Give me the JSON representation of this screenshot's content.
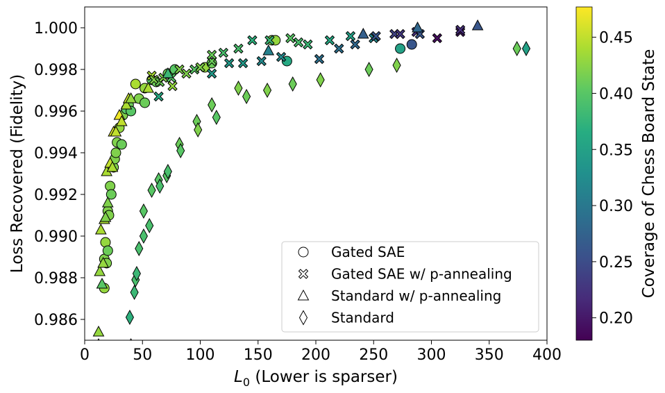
{
  "chart_data": {
    "type": "scatter",
    "xlabel_main": "L",
    "xlabel_sub": "0",
    "xlabel_rest": " (Lower is sparser)",
    "ylabel": "Loss Recovered (Fidelity)",
    "colorbar_label": "Coverage of Chess Board State",
    "xlim": [
      0,
      400
    ],
    "ylim": [
      0.985,
      1.001
    ],
    "x_ticks": [
      "0",
      "50",
      "100",
      "150",
      "200",
      "250",
      "300",
      "350",
      "400"
    ],
    "x_tick_values": [
      0,
      50,
      100,
      150,
      200,
      250,
      300,
      350,
      400
    ],
    "y_ticks": [
      "0.986",
      "0.988",
      "0.990",
      "0.992",
      "0.994",
      "0.996",
      "0.998",
      "1.000"
    ],
    "y_tick_values": [
      0.986,
      0.988,
      0.99,
      0.992,
      0.994,
      0.996,
      0.998,
      1.0
    ],
    "colorbar": {
      "colormap": "viridis",
      "range": [
        0.18,
        0.477
      ],
      "ticks": [
        "0.20",
        "0.25",
        "0.30",
        "0.35",
        "0.40",
        "0.45"
      ],
      "tick_values": [
        0.2,
        0.25,
        0.3,
        0.35,
        0.4,
        0.45
      ]
    },
    "grid": false,
    "legend_position": "lower-right",
    "series": [
      {
        "name": "Gated SAE",
        "marker": "circle",
        "points": [
          [
            17,
            0.9875,
            0.43
          ],
          [
            17,
            0.9889,
            0.42
          ],
          [
            18,
            0.9897,
            0.43
          ],
          [
            19,
            0.9887,
            0.42
          ],
          [
            20,
            0.9893,
            0.41
          ],
          [
            20,
            0.9912,
            0.42
          ],
          [
            21,
            0.991,
            0.42
          ],
          [
            22,
            0.9924,
            0.42
          ],
          [
            23,
            0.992,
            0.41
          ],
          [
            25,
            0.9933,
            0.42
          ],
          [
            26,
            0.9937,
            0.42
          ],
          [
            27,
            0.994,
            0.42
          ],
          [
            28,
            0.9945,
            0.42
          ],
          [
            30,
            0.9952,
            0.43
          ],
          [
            32,
            0.9944,
            0.41
          ],
          [
            33,
            0.9958,
            0.42
          ],
          [
            36,
            0.9961,
            0.4
          ],
          [
            38,
            0.9963,
            0.41
          ],
          [
            40,
            0.996,
            0.4
          ],
          [
            44,
            0.9973,
            0.44
          ],
          [
            47,
            0.9966,
            0.42
          ],
          [
            52,
            0.9971,
            0.43
          ],
          [
            52,
            0.9964,
            0.41
          ],
          [
            58,
            0.9975,
            0.4
          ],
          [
            62,
            0.9974,
            0.41
          ],
          [
            72,
            0.9978,
            0.41
          ],
          [
            78,
            0.998,
            0.4
          ],
          [
            104,
            0.9981,
            0.43
          ],
          [
            110,
            0.9983,
            0.41
          ],
          [
            162,
            0.9994,
            0.42
          ],
          [
            165,
            0.9994,
            0.43
          ],
          [
            175,
            0.9984,
            0.36
          ],
          [
            273,
            0.999,
            0.35
          ],
          [
            283,
            0.9992,
            0.26
          ]
        ]
      },
      {
        "name": "Gated SAE w/ p-annealing",
        "marker": "x",
        "points": [
          [
            58,
            0.9977,
            0.44
          ],
          [
            60,
            0.9975,
            0.42
          ],
          [
            64,
            0.9967,
            0.36
          ],
          [
            65,
            0.9974,
            0.41
          ],
          [
            68,
            0.9976,
            0.42
          ],
          [
            75,
            0.9976,
            0.4
          ],
          [
            76,
            0.9972,
            0.43
          ],
          [
            82,
            0.998,
            0.42
          ],
          [
            88,
            0.9978,
            0.42
          ],
          [
            95,
            0.998,
            0.4
          ],
          [
            100,
            0.9981,
            0.42
          ],
          [
            110,
            0.9984,
            0.41
          ],
          [
            110,
            0.9987,
            0.41
          ],
          [
            110,
            0.9978,
            0.34
          ],
          [
            120,
            0.9988,
            0.39
          ],
          [
            125,
            0.9983,
            0.34
          ],
          [
            133,
            0.999,
            0.39
          ],
          [
            137,
            0.9983,
            0.34
          ],
          [
            145,
            0.9994,
            0.37
          ],
          [
            153,
            0.9984,
            0.32
          ],
          [
            160,
            0.9994,
            0.38
          ],
          [
            170,
            0.9986,
            0.32
          ],
          [
            178,
            0.9995,
            0.4
          ],
          [
            185,
            0.9993,
            0.39
          ],
          [
            193,
            0.9992,
            0.38
          ],
          [
            203,
            0.9985,
            0.29
          ],
          [
            212,
            0.9994,
            0.36
          ],
          [
            220,
            0.999,
            0.29
          ],
          [
            230,
            0.9996,
            0.35
          ],
          [
            234,
            0.9992,
            0.28
          ],
          [
            250,
            0.9995,
            0.32
          ],
          [
            252,
            0.9996,
            0.26
          ],
          [
            268,
            0.9997,
            0.24
          ],
          [
            273,
            0.9997,
            0.23
          ],
          [
            287,
            0.9998,
            0.22
          ],
          [
            290,
            0.9997,
            0.26
          ],
          [
            305,
            0.9995,
            0.19
          ],
          [
            325,
            0.9998,
            0.2
          ],
          [
            325,
            0.9999,
            0.22
          ]
        ]
      },
      {
        "name": "Standard w/ p-annealing",
        "marker": "triangle",
        "points": [
          [
            12,
            0.9854,
            0.43
          ],
          [
            13,
            0.9883,
            0.43
          ],
          [
            14,
            0.9903,
            0.44
          ],
          [
            15,
            0.9877,
            0.4
          ],
          [
            16,
            0.9887,
            0.43
          ],
          [
            17,
            0.9908,
            0.44
          ],
          [
            18,
            0.9909,
            0.42
          ],
          [
            19,
            0.9931,
            0.44
          ],
          [
            20,
            0.9916,
            0.42
          ],
          [
            22,
            0.9935,
            0.45
          ],
          [
            24,
            0.9933,
            0.44
          ],
          [
            25,
            0.995,
            0.46
          ],
          [
            27,
            0.995,
            0.45
          ],
          [
            30,
            0.9958,
            0.47
          ],
          [
            32,
            0.9955,
            0.45
          ],
          [
            36,
            0.9963,
            0.44
          ],
          [
            38,
            0.9966,
            0.45
          ],
          [
            40,
            0.9966,
            0.43
          ],
          [
            55,
            0.9971,
            0.44
          ],
          [
            72,
            0.9978,
            0.38
          ],
          [
            159,
            0.9989,
            0.31
          ],
          [
            241,
            0.9997,
            0.27
          ],
          [
            288,
            1.0,
            0.28
          ],
          [
            340,
            1.0001,
            0.26
          ],
          [
            12,
            0.9848,
            0.41
          ],
          [
            40,
            0.9848,
            0.4
          ]
        ]
      },
      {
        "name": "Standard",
        "marker": "diamond",
        "points": [
          [
            39,
            0.9861,
            0.37
          ],
          [
            43,
            0.9873,
            0.38
          ],
          [
            44,
            0.9879,
            0.39
          ],
          [
            45,
            0.9882,
            0.38
          ],
          [
            47,
            0.9894,
            0.39
          ],
          [
            51,
            0.99,
            0.39
          ],
          [
            51,
            0.9912,
            0.4
          ],
          [
            56,
            0.9905,
            0.39
          ],
          [
            58,
            0.9922,
            0.4
          ],
          [
            64,
            0.9927,
            0.4
          ],
          [
            65,
            0.9924,
            0.39
          ],
          [
            71,
            0.9929,
            0.4
          ],
          [
            72,
            0.9931,
            0.39
          ],
          [
            82,
            0.9944,
            0.41
          ],
          [
            83,
            0.9941,
            0.4
          ],
          [
            97,
            0.9955,
            0.41
          ],
          [
            98,
            0.9951,
            0.42
          ],
          [
            110,
            0.9963,
            0.41
          ],
          [
            114,
            0.9957,
            0.4
          ],
          [
            133,
            0.9971,
            0.42
          ],
          [
            140,
            0.9967,
            0.41
          ],
          [
            158,
            0.997,
            0.42
          ],
          [
            180,
            0.9973,
            0.41
          ],
          [
            204,
            0.9975,
            0.42
          ],
          [
            246,
            0.998,
            0.41
          ],
          [
            270,
            0.9982,
            0.42
          ],
          [
            374,
            0.999,
            0.41
          ],
          [
            382,
            0.999,
            0.35
          ]
        ]
      }
    ]
  }
}
